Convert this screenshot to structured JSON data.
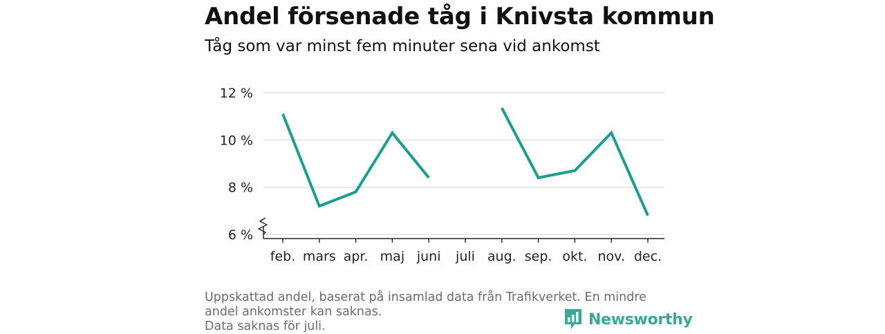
{
  "header": {
    "title": "Andel försenade tåg i Knivsta kommun",
    "subtitle": "Tåg som var minst fem minuter sena vid ankomst"
  },
  "footer": {
    "note_line1": "Uppskattad andel, baserat på insamlad data från Trafikverket. En mindre andel ankomster kan saknas.",
    "note_line2": "Data saknas för juli.",
    "brand": "Newsworthy"
  },
  "colors": {
    "line": "#1a9e8f",
    "brand": "#3aa897",
    "grid": "#d9d9d9"
  },
  "chart_data": {
    "type": "line",
    "categories": [
      "feb.",
      "mars",
      "apr.",
      "maj",
      "juni",
      "juli",
      "aug.",
      "sep.",
      "okt.",
      "nov.",
      "dec."
    ],
    "series": [
      {
        "values": [
          11.1,
          7.2,
          7.8,
          10.3,
          8.4,
          null,
          11.35,
          8.4,
          8.7,
          10.3,
          6.8
        ]
      }
    ],
    "ylim": [
      6,
      12
    ],
    "yticks": [
      6,
      8,
      10,
      12
    ],
    "ytick_labels": [
      "6 %",
      "8 %",
      "10 %",
      "12 %"
    ],
    "axis_break": true,
    "grid": true,
    "xlabel": "",
    "ylabel": ""
  }
}
